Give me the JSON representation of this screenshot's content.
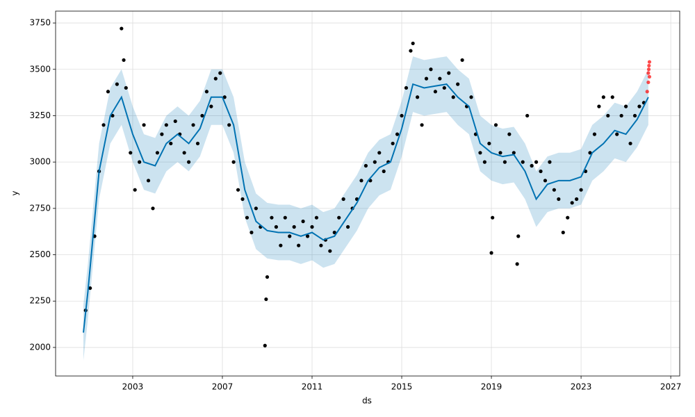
{
  "chart_data": {
    "type": "forecast",
    "x_label": "ds",
    "y_label": "y",
    "xlim": [
      1999.56,
      2027.4
    ],
    "ylim": [
      1846,
      3814
    ],
    "xticks": [
      2003,
      2007,
      2011,
      2015,
      2019,
      2023,
      2027
    ],
    "yticks": [
      2000,
      2250,
      2500,
      2750,
      3000,
      3250,
      3500,
      3750
    ],
    "grid": true,
    "series": [
      {
        "kind": "band",
        "color": "#0072B2",
        "x": [
          2000.8,
          2001.0,
          2001.5,
          2002.0,
          2002.5,
          2003.0,
          2003.5,
          2004.0,
          2004.5,
          2005.0,
          2005.5,
          2006.0,
          2006.5,
          2007.0,
          2007.5,
          2008.0,
          2008.5,
          2009.0,
          2009.5,
          2010.0,
          2010.5,
          2011.0,
          2011.5,
          2012.0,
          2012.5,
          2013.0,
          2013.5,
          2014.0,
          2014.5,
          2015.0,
          2015.5,
          2016.0,
          2016.5,
          2017.0,
          2017.5,
          2018.0,
          2018.5,
          2019.0,
          2019.5,
          2020.0,
          2020.5,
          2021.0,
          2021.5,
          2022.0,
          2022.5,
          2023.0,
          2023.5,
          2024.0,
          2024.5,
          2025.0,
          2025.5,
          2026.0
        ],
        "lower": [
          1930,
          2150,
          2800,
          3100,
          3200,
          3000,
          2850,
          2830,
          2950,
          3000,
          2950,
          3030,
          3200,
          3200,
          3050,
          2700,
          2530,
          2480,
          2470,
          2470,
          2450,
          2470,
          2430,
          2450,
          2540,
          2630,
          2750,
          2820,
          2850,
          3030,
          3270,
          3250,
          3260,
          3270,
          3200,
          3150,
          2950,
          2900,
          2880,
          2890,
          2800,
          2650,
          2730,
          2750,
          2750,
          2770,
          2900,
          2950,
          3020,
          3000,
          3080,
          3200
        ],
        "upper": [
          2230,
          2450,
          3100,
          3400,
          3500,
          3300,
          3150,
          3130,
          3250,
          3300,
          3250,
          3330,
          3500,
          3500,
          3350,
          3000,
          2830,
          2780,
          2770,
          2770,
          2750,
          2770,
          2730,
          2750,
          2840,
          2930,
          3050,
          3120,
          3150,
          3330,
          3570,
          3550,
          3560,
          3570,
          3500,
          3450,
          3250,
          3200,
          3180,
          3190,
          3100,
          2950,
          3030,
          3050,
          3050,
          3070,
          3200,
          3250,
          3320,
          3300,
          3380,
          3500
        ]
      },
      {
        "kind": "points",
        "color": "#000000",
        "x": [
          2000.9,
          2001.1,
          2001.3,
          2001.5,
          2001.7,
          2001.9,
          2002.1,
          2002.3,
          2002.5,
          2002.6,
          2002.7,
          2002.9,
          2003.1,
          2003.3,
          2003.5,
          2003.7,
          2003.9,
          2004.1,
          2004.3,
          2004.5,
          2004.7,
          2004.9,
          2005.1,
          2005.3,
          2005.5,
          2005.7,
          2005.9,
          2006.1,
          2006.3,
          2006.5,
          2006.7,
          2006.9,
          2007.1,
          2007.3,
          2007.5,
          2007.7,
          2007.9,
          2008.1,
          2008.3,
          2008.5,
          2008.7,
          2008.9,
          2008.95,
          2009.0,
          2009.2,
          2009.4,
          2009.6,
          2009.8,
          2010.0,
          2010.2,
          2010.4,
          2010.6,
          2010.8,
          2011.0,
          2011.2,
          2011.4,
          2011.6,
          2011.8,
          2012.0,
          2012.2,
          2012.4,
          2012.6,
          2012.8,
          2013.0,
          2013.2,
          2013.4,
          2013.6,
          2013.8,
          2014.0,
          2014.2,
          2014.4,
          2014.6,
          2014.8,
          2015.0,
          2015.2,
          2015.4,
          2015.5,
          2015.7,
          2015.9,
          2016.1,
          2016.3,
          2016.5,
          2016.7,
          2016.9,
          2017.1,
          2017.3,
          2017.5,
          2017.7,
          2017.9,
          2018.1,
          2018.3,
          2018.5,
          2018.7,
          2018.9,
          2019.0,
          2019.05,
          2019.2,
          2019.4,
          2019.6,
          2019.8,
          2020.0,
          2020.15,
          2020.2,
          2020.4,
          2020.6,
          2020.8,
          2021.0,
          2021.2,
          2021.4,
          2021.6,
          2021.8,
          2022.0,
          2022.2,
          2022.4,
          2022.6,
          2022.8,
          2023.0,
          2023.2,
          2023.4,
          2023.6,
          2023.8,
          2024.0,
          2024.2,
          2024.4,
          2024.6,
          2024.8,
          2025.0,
          2025.2,
          2025.4,
          2025.6,
          2025.8
        ],
        "values": [
          2200,
          2320,
          2600,
          2950,
          3200,
          3380,
          3250,
          3420,
          3720,
          3550,
          3400,
          3050,
          2850,
          3000,
          3200,
          2900,
          2750,
          3050,
          3150,
          3200,
          3100,
          3220,
          3150,
          3050,
          3000,
          3200,
          3100,
          3250,
          3380,
          3300,
          3450,
          3480,
          3350,
          3200,
          3000,
          2850,
          2800,
          2700,
          2620,
          2750,
          2650,
          2010,
          2260,
          2380,
          2700,
          2650,
          2550,
          2700,
          2600,
          2650,
          2550,
          2680,
          2600,
          2650,
          2700,
          2550,
          2580,
          2520,
          2620,
          2700,
          2800,
          2650,
          2750,
          2800,
          2900,
          2980,
          2900,
          3000,
          3050,
          2950,
          3000,
          3100,
          3150,
          3250,
          3400,
          3600,
          3640,
          3350,
          3200,
          3450,
          3500,
          3380,
          3450,
          3400,
          3480,
          3350,
          3420,
          3550,
          3300,
          3350,
          3150,
          3050,
          3000,
          3100,
          2510,
          2700,
          3200,
          3050,
          3000,
          3150,
          3050,
          2450,
          2600,
          3000,
          3250,
          2980,
          3000,
          2950,
          2900,
          3000,
          2850,
          2800,
          2620,
          2700,
          2780,
          2800,
          2850,
          2950,
          3050,
          3150,
          3300,
          3350,
          3250,
          3350,
          3150,
          3250,
          3300,
          3100,
          3250,
          3300,
          3320
        ]
      },
      {
        "kind": "line",
        "color": "#0072B2",
        "x": [
          2000.8,
          2001.0,
          2001.5,
          2002.0,
          2002.5,
          2003.0,
          2003.5,
          2004.0,
          2004.5,
          2005.0,
          2005.5,
          2006.0,
          2006.5,
          2007.0,
          2007.5,
          2008.0,
          2008.5,
          2009.0,
          2009.5,
          2010.0,
          2010.5,
          2011.0,
          2011.5,
          2012.0,
          2012.5,
          2013.0,
          2013.5,
          2014.0,
          2014.5,
          2015.0,
          2015.5,
          2016.0,
          2016.5,
          2017.0,
          2017.5,
          2018.0,
          2018.5,
          2019.0,
          2019.5,
          2020.0,
          2020.5,
          2021.0,
          2021.5,
          2022.0,
          2022.5,
          2023.0,
          2023.5,
          2024.0,
          2024.5,
          2025.0,
          2025.5,
          2026.0
        ],
        "values": [
          2080,
          2300,
          2950,
          3250,
          3350,
          3150,
          3000,
          2980,
          3100,
          3150,
          3100,
          3180,
          3350,
          3350,
          3200,
          2850,
          2680,
          2630,
          2620,
          2620,
          2600,
          2620,
          2580,
          2600,
          2690,
          2780,
          2900,
          2970,
          3000,
          3180,
          3420,
          3400,
          3410,
          3420,
          3350,
          3300,
          3100,
          3050,
          3030,
          3040,
          2950,
          2800,
          2880,
          2900,
          2900,
          2920,
          3050,
          3100,
          3170,
          3150,
          3230,
          3350
        ]
      },
      {
        "kind": "points",
        "color": "#ff0000",
        "x": [
          2025.95,
          2026.0,
          2026.0,
          2026.02,
          2026.03,
          2026.05,
          2026.05
        ],
        "values": [
          3380,
          3430,
          3480,
          3500,
          3520,
          3540,
          3460
        ]
      }
    ]
  }
}
